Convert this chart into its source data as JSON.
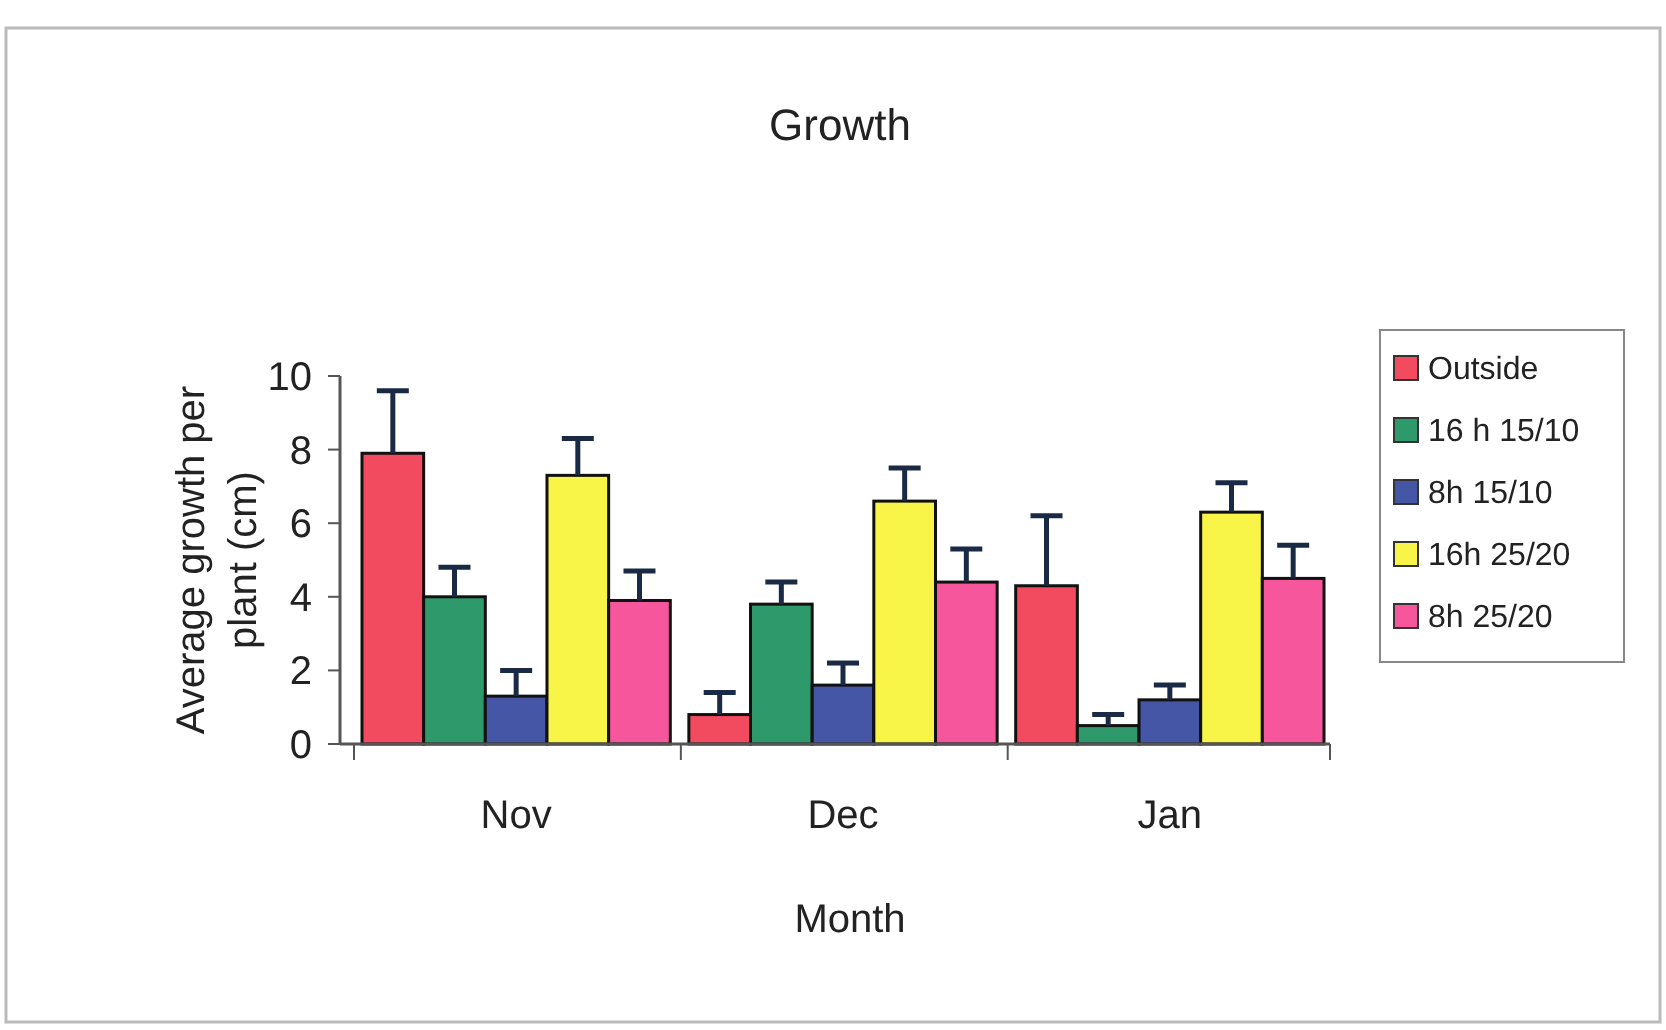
{
  "chart_data": {
    "type": "bar",
    "title": "Growth",
    "xlabel": "Month",
    "ylabel": "Average growth per plant (cm)",
    "categories": [
      "Nov",
      "Dec",
      "Jan"
    ],
    "ylim": [
      0,
      10
    ],
    "yticks": [
      0,
      2,
      4,
      6,
      8,
      10
    ],
    "legend": "right",
    "grid": false,
    "series": [
      {
        "name": "Outside",
        "color": "#f24a5e",
        "values": [
          7.9,
          0.8,
          4.3
        ],
        "errors": [
          [
            7.9,
            9.6
          ],
          [
            0.8,
            1.4
          ],
          [
            4.3,
            6.2
          ]
        ]
      },
      {
        "name": "16 h 15/10",
        "color": "#2e9a6c",
        "values": [
          4.0,
          3.8,
          0.5
        ],
        "errors": [
          [
            4.0,
            4.8
          ],
          [
            3.8,
            4.4
          ],
          [
            0.5,
            0.8
          ]
        ]
      },
      {
        "name": "8h 15/10",
        "color": "#4556a6",
        "values": [
          1.3,
          1.6,
          1.2
        ],
        "errors": [
          [
            1.3,
            2.0
          ],
          [
            1.6,
            2.2
          ],
          [
            1.2,
            1.6
          ]
        ]
      },
      {
        "name": "16h 25/20",
        "color": "#f8f448",
        "values": [
          7.3,
          6.6,
          6.3
        ],
        "errors": [
          [
            7.3,
            8.3
          ],
          [
            6.6,
            7.5
          ],
          [
            6.3,
            7.1
          ]
        ]
      },
      {
        "name": "8h 25/20",
        "color": "#f6569c",
        "values": [
          3.9,
          4.4,
          4.5
        ],
        "errors": [
          [
            3.9,
            4.7
          ],
          [
            4.4,
            5.3
          ],
          [
            4.5,
            5.4
          ]
        ]
      }
    ]
  }
}
